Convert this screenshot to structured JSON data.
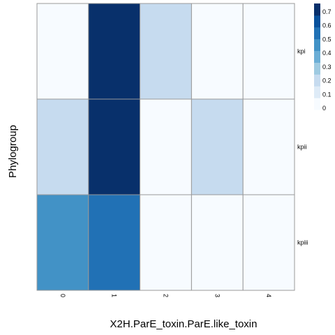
{
  "chart_data": {
    "type": "heatmap",
    "title": "",
    "xlabel": "X2H.ParE_toxin.ParE.like_toxin",
    "ylabel": "Phylogroup",
    "x_categories": [
      "0",
      "1",
      "2",
      "3",
      "4"
    ],
    "y_categories": [
      "kpi",
      "kpii",
      "kpiii"
    ],
    "values": [
      [
        0.02,
        0.75,
        0.15,
        0.02,
        0.02
      ],
      [
        0.15,
        0.75,
        0.02,
        0.15,
        0.02
      ],
      [
        0.45,
        0.6,
        0.02,
        0.02,
        0.02
      ]
    ],
    "legend": {
      "ticks": [
        "0",
        "0.1",
        "0.2",
        "0.3",
        "0.4",
        "0.5",
        "0.6",
        "0.7"
      ],
      "placement": "top-right"
    },
    "color_scale": [
      "#f7fbff",
      "#deebf7",
      "#c6dbef",
      "#9ecae1",
      "#6baed6",
      "#4292c6",
      "#2171b5",
      "#08519c",
      "#08306b"
    ],
    "vmax": 0.75
  }
}
